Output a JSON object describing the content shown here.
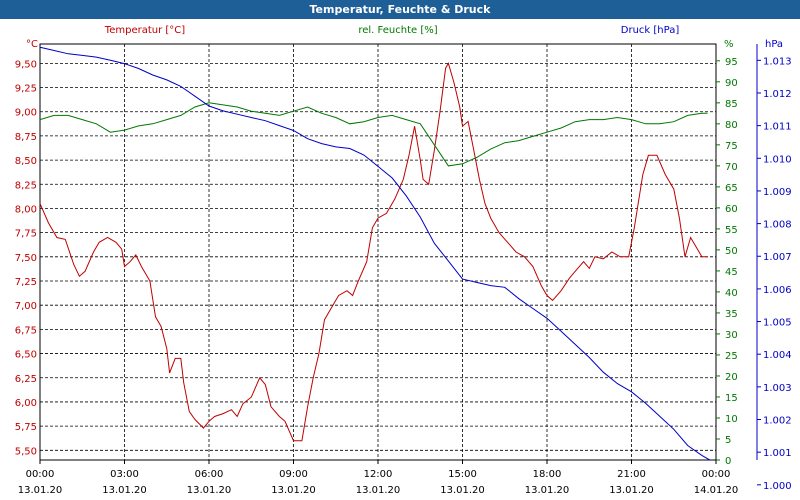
{
  "window": {
    "title": "Temperatur, Feuchte & Druck"
  },
  "series_labels": {
    "temperature": "Temperatur [°C]",
    "humidity": "rel. Feuchte [%]",
    "pressure": "Druck [hPa]"
  },
  "axis_units": {
    "left": "°C",
    "right1": "%",
    "right2": "hPa"
  },
  "colors": {
    "temperature": "#c00000",
    "humidity": "#007800",
    "pressure": "#0000c8",
    "title_bar": "#1f5f97"
  },
  "chart_data": {
    "type": "line",
    "x_ticks": [
      {
        "hour": 0,
        "time": "00:00",
        "date": "13.01.20"
      },
      {
        "hour": 3,
        "time": "03:00",
        "date": "13.01.20"
      },
      {
        "hour": 6,
        "time": "06:00",
        "date": "13.01.20"
      },
      {
        "hour": 9,
        "time": "09:00",
        "date": "13.01.20"
      },
      {
        "hour": 12,
        "time": "12:00",
        "date": "13.01.20"
      },
      {
        "hour": 15,
        "time": "15:00",
        "date": "13.01.20"
      },
      {
        "hour": 18,
        "time": "18:00",
        "date": "13.01.20"
      },
      {
        "hour": 21,
        "time": "21:00",
        "date": "13.01.20"
      },
      {
        "hour": 24,
        "time": "00:00",
        "date": "14.01.20"
      }
    ],
    "xlim_hours": [
      0,
      24
    ],
    "grid": true,
    "axes": {
      "temperature": {
        "min": 5.4,
        "max": 9.7,
        "ticks": [
          "9,50",
          "9,25",
          "9,00",
          "8,75",
          "8,50",
          "8,25",
          "8,00",
          "7,75",
          "7,50",
          "7,25",
          "7,00",
          "6,75",
          "6,50",
          "6,25",
          "6,00",
          "5,75",
          "5,50"
        ],
        "tick_values": [
          9.5,
          9.25,
          9.0,
          8.75,
          8.5,
          8.25,
          8.0,
          7.75,
          7.5,
          7.25,
          7.0,
          6.75,
          6.5,
          6.25,
          6.0,
          5.75,
          5.5
        ]
      },
      "humidity": {
        "min": 0,
        "max": 99,
        "ticks": [
          "95",
          "90",
          "85",
          "80",
          "75",
          "70",
          "65",
          "60",
          "55",
          "50",
          "45",
          "40",
          "35",
          "30",
          "25",
          "20",
          "15",
          "10",
          "5",
          "0"
        ],
        "tick_values": [
          95,
          90,
          85,
          80,
          75,
          70,
          65,
          60,
          55,
          50,
          45,
          40,
          35,
          30,
          25,
          20,
          15,
          10,
          5,
          0
        ]
      },
      "pressure": {
        "min": 1000.76,
        "max": 1013.5,
        "ticks": [
          "1.013",
          "1.012",
          "1.011",
          "1.010",
          "1.009",
          "1.008",
          "1.007",
          "1.006",
          "1.005",
          "1.004",
          "1.003",
          "1.002",
          "1.001",
          "1.000"
        ],
        "tick_values": [
          1013,
          1012,
          1011,
          1010,
          1009,
          1008,
          1007,
          1006,
          1005,
          1004,
          1003,
          1002,
          1001,
          1000
        ]
      }
    },
    "series": [
      {
        "name": "Temperatur [°C]",
        "axis": "temperature",
        "points": [
          [
            0,
            8.05
          ],
          [
            0.3,
            7.85
          ],
          [
            0.6,
            7.7
          ],
          [
            0.9,
            7.68
          ],
          [
            1.2,
            7.42
          ],
          [
            1.4,
            7.3
          ],
          [
            1.6,
            7.35
          ],
          [
            1.9,
            7.55
          ],
          [
            2.1,
            7.65
          ],
          [
            2.4,
            7.7
          ],
          [
            2.7,
            7.65
          ],
          [
            2.9,
            7.58
          ],
          [
            3.0,
            7.4
          ],
          [
            3.2,
            7.45
          ],
          [
            3.4,
            7.52
          ],
          [
            3.6,
            7.4
          ],
          [
            3.9,
            7.25
          ],
          [
            4.1,
            6.88
          ],
          [
            4.3,
            6.78
          ],
          [
            4.5,
            6.55
          ],
          [
            4.6,
            6.3
          ],
          [
            4.8,
            6.45
          ],
          [
            5.0,
            6.45
          ],
          [
            5.1,
            6.2
          ],
          [
            5.3,
            5.9
          ],
          [
            5.5,
            5.82
          ],
          [
            5.8,
            5.73
          ],
          [
            6.0,
            5.8
          ],
          [
            6.2,
            5.85
          ],
          [
            6.5,
            5.88
          ],
          [
            6.8,
            5.92
          ],
          [
            7.0,
            5.85
          ],
          [
            7.2,
            5.98
          ],
          [
            7.5,
            6.05
          ],
          [
            7.8,
            6.25
          ],
          [
            8.0,
            6.18
          ],
          [
            8.2,
            5.95
          ],
          [
            8.5,
            5.85
          ],
          [
            8.7,
            5.8
          ],
          [
            9.0,
            5.6
          ],
          [
            9.3,
            5.6
          ],
          [
            9.5,
            5.95
          ],
          [
            9.7,
            6.25
          ],
          [
            9.9,
            6.5
          ],
          [
            10.1,
            6.85
          ],
          [
            10.4,
            7.0
          ],
          [
            10.6,
            7.1
          ],
          [
            10.9,
            7.15
          ],
          [
            11.1,
            7.1
          ],
          [
            11.3,
            7.25
          ],
          [
            11.6,
            7.45
          ],
          [
            11.8,
            7.8
          ],
          [
            12.0,
            7.9
          ],
          [
            12.3,
            7.95
          ],
          [
            12.6,
            8.1
          ],
          [
            12.9,
            8.3
          ],
          [
            13.1,
            8.55
          ],
          [
            13.3,
            8.85
          ],
          [
            13.5,
            8.5
          ],
          [
            13.6,
            8.3
          ],
          [
            13.8,
            8.25
          ],
          [
            14.0,
            8.6
          ],
          [
            14.2,
            9.0
          ],
          [
            14.4,
            9.45
          ],
          [
            14.5,
            9.5
          ],
          [
            14.7,
            9.3
          ],
          [
            14.9,
            9.05
          ],
          [
            15.0,
            8.85
          ],
          [
            15.2,
            8.9
          ],
          [
            15.4,
            8.6
          ],
          [
            15.6,
            8.3
          ],
          [
            15.8,
            8.05
          ],
          [
            16.0,
            7.9
          ],
          [
            16.3,
            7.75
          ],
          [
            16.6,
            7.65
          ],
          [
            16.9,
            7.55
          ],
          [
            17.2,
            7.5
          ],
          [
            17.5,
            7.4
          ],
          [
            17.8,
            7.2
          ],
          [
            18.0,
            7.1
          ],
          [
            18.2,
            7.05
          ],
          [
            18.5,
            7.15
          ],
          [
            18.8,
            7.28
          ],
          [
            19.0,
            7.35
          ],
          [
            19.3,
            7.45
          ],
          [
            19.5,
            7.38
          ],
          [
            19.7,
            7.5
          ],
          [
            20.0,
            7.48
          ],
          [
            20.3,
            7.55
          ],
          [
            20.6,
            7.5
          ],
          [
            20.9,
            7.5
          ],
          [
            21.1,
            7.8
          ],
          [
            21.4,
            8.35
          ],
          [
            21.6,
            8.55
          ],
          [
            21.9,
            8.55
          ],
          [
            22.2,
            8.35
          ],
          [
            22.5,
            8.2
          ],
          [
            22.7,
            7.9
          ],
          [
            22.9,
            7.5
          ],
          [
            23.1,
            7.7
          ],
          [
            23.3,
            7.6
          ],
          [
            23.5,
            7.5
          ],
          [
            23.7,
            7.5
          ]
        ]
      },
      {
        "name": "rel. Feuchte [%]",
        "axis": "humidity",
        "points": [
          [
            0,
            81
          ],
          [
            0.5,
            82
          ],
          [
            1.0,
            82
          ],
          [
            1.5,
            81
          ],
          [
            2.0,
            80
          ],
          [
            2.5,
            78
          ],
          [
            3.0,
            78.5
          ],
          [
            3.5,
            79.5
          ],
          [
            4.0,
            80
          ],
          [
            4.5,
            81
          ],
          [
            5.0,
            82
          ],
          [
            5.5,
            84
          ],
          [
            6.0,
            85
          ],
          [
            6.5,
            84.5
          ],
          [
            7.0,
            84
          ],
          [
            7.5,
            83
          ],
          [
            8.0,
            82.5
          ],
          [
            8.5,
            82
          ],
          [
            9.0,
            83
          ],
          [
            9.5,
            84
          ],
          [
            10.0,
            82.5
          ],
          [
            10.5,
            81.5
          ],
          [
            11.0,
            80
          ],
          [
            11.5,
            80.5
          ],
          [
            12.0,
            81.5
          ],
          [
            12.5,
            82
          ],
          [
            13.0,
            81
          ],
          [
            13.5,
            80
          ],
          [
            14.0,
            75
          ],
          [
            14.5,
            70
          ],
          [
            15.0,
            70.5
          ],
          [
            15.5,
            72
          ],
          [
            16.0,
            74
          ],
          [
            16.5,
            75.5
          ],
          [
            17.0,
            76
          ],
          [
            17.5,
            77
          ],
          [
            18.0,
            78
          ],
          [
            18.5,
            79
          ],
          [
            19.0,
            80.5
          ],
          [
            19.5,
            81
          ],
          [
            20.0,
            81
          ],
          [
            20.5,
            81.5
          ],
          [
            21.0,
            81
          ],
          [
            21.5,
            80
          ],
          [
            22.0,
            80
          ],
          [
            22.5,
            80.5
          ],
          [
            23.0,
            82
          ],
          [
            23.5,
            82.5
          ],
          [
            23.7,
            82.5
          ]
        ]
      },
      {
        "name": "Druck [hPa]",
        "axis": "pressure",
        "points": [
          [
            0,
            1013.4
          ],
          [
            0.5,
            1013.3
          ],
          [
            1.0,
            1013.2
          ],
          [
            1.5,
            1013.15
          ],
          [
            2.0,
            1013.1
          ],
          [
            2.5,
            1013.0
          ],
          [
            3.0,
            1012.9
          ],
          [
            3.5,
            1012.75
          ],
          [
            4.0,
            1012.55
          ],
          [
            4.5,
            1012.4
          ],
          [
            5.0,
            1012.2
          ],
          [
            5.5,
            1011.9
          ],
          [
            6.0,
            1011.6
          ],
          [
            6.5,
            1011.45
          ],
          [
            7.0,
            1011.35
          ],
          [
            7.5,
            1011.25
          ],
          [
            8.0,
            1011.15
          ],
          [
            8.5,
            1011.0
          ],
          [
            9.0,
            1010.85
          ],
          [
            9.5,
            1010.6
          ],
          [
            10.0,
            1010.45
          ],
          [
            10.5,
            1010.35
          ],
          [
            11.0,
            1010.3
          ],
          [
            11.5,
            1010.1
          ],
          [
            12.0,
            1009.75
          ],
          [
            12.5,
            1009.4
          ],
          [
            13.0,
            1008.85
          ],
          [
            13.5,
            1008.2
          ],
          [
            14.0,
            1007.4
          ],
          [
            14.5,
            1006.85
          ],
          [
            15.0,
            1006.3
          ],
          [
            15.5,
            1006.2
          ],
          [
            16.0,
            1006.1
          ],
          [
            16.5,
            1006.05
          ],
          [
            17.0,
            1005.7
          ],
          [
            17.5,
            1005.4
          ],
          [
            18.0,
            1005.1
          ],
          [
            18.5,
            1004.7
          ],
          [
            19.0,
            1004.3
          ],
          [
            19.5,
            1003.9
          ],
          [
            20.0,
            1003.45
          ],
          [
            20.5,
            1003.1
          ],
          [
            21.0,
            1002.85
          ],
          [
            21.5,
            1002.5
          ],
          [
            22.0,
            1002.1
          ],
          [
            22.5,
            1001.7
          ],
          [
            23.0,
            1001.2
          ],
          [
            23.5,
            1000.9
          ],
          [
            23.8,
            1000.75
          ]
        ]
      }
    ]
  }
}
